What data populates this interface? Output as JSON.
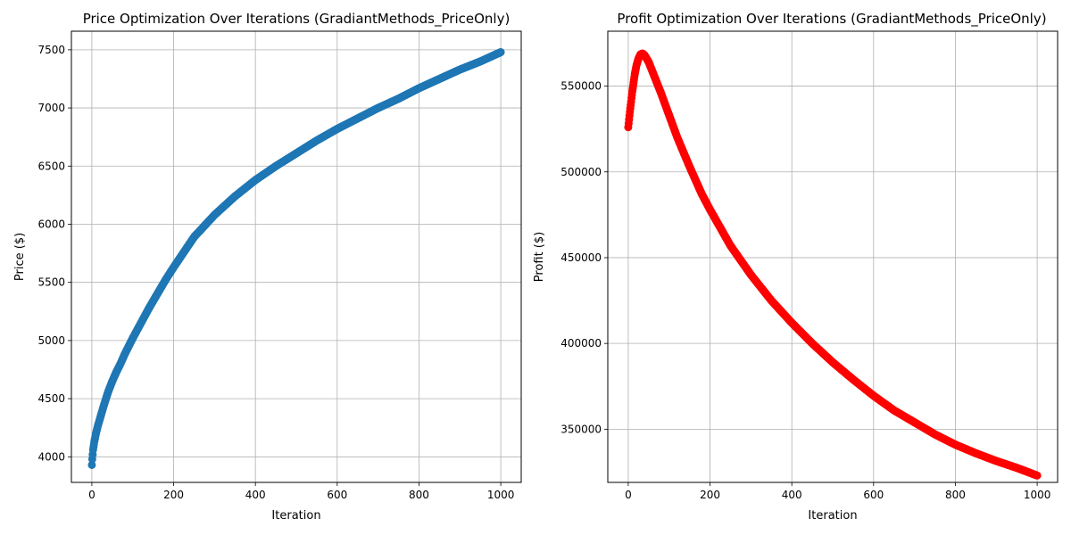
{
  "chart_data": [
    {
      "type": "scatter",
      "title": "Price Optimization Over Iterations (GradiantMethods_PriceOnly)",
      "xlabel": "Iteration",
      "ylabel": "Price ($)",
      "xlim": [
        -50,
        1050
      ],
      "ylim": [
        3780,
        7660
      ],
      "xticks": [
        0,
        200,
        400,
        600,
        800,
        1000
      ],
      "yticks": [
        4000,
        4500,
        5000,
        5500,
        6000,
        6500,
        7000,
        7500
      ],
      "grid": true,
      "color": "#1f77b4",
      "series": [
        {
          "x": [
            0,
            1,
            3,
            6,
            10,
            15,
            20,
            30,
            40,
            50,
            60,
            70,
            80,
            90,
            100,
            120,
            140,
            160,
            180,
            200,
            250,
            300,
            350,
            400,
            450,
            500,
            550,
            600,
            650,
            700,
            750,
            800,
            850,
            900,
            950,
            1000
          ],
          "values": [
            3930,
            3980,
            4060,
            4130,
            4200,
            4270,
            4330,
            4450,
            4560,
            4650,
            4730,
            4800,
            4880,
            4950,
            5020,
            5150,
            5280,
            5400,
            5520,
            5630,
            5890,
            6080,
            6240,
            6380,
            6500,
            6610,
            6720,
            6820,
            6910,
            7000,
            7080,
            7170,
            7250,
            7330,
            7400,
            7480
          ]
        }
      ]
    },
    {
      "type": "scatter",
      "title": "Profit Optimization Over Iterations (GradiantMethods_PriceOnly)",
      "xlabel": "Iteration",
      "ylabel": "Profit ($)",
      "xlim": [
        -50,
        1050
      ],
      "ylim": [
        319000,
        582000
      ],
      "xticks": [
        0,
        200,
        400,
        600,
        800,
        1000
      ],
      "yticks": [
        350000,
        400000,
        450000,
        500000,
        550000
      ],
      "grid": true,
      "color": "#ff0000",
      "series": [
        {
          "x": [
            0,
            2,
            4,
            6,
            8,
            10,
            13,
            16,
            20,
            25,
            30,
            35,
            40,
            50,
            60,
            70,
            80,
            100,
            120,
            150,
            180,
            200,
            250,
            300,
            350,
            400,
            450,
            500,
            550,
            600,
            650,
            700,
            750,
            800,
            850,
            900,
            950,
            1000
          ],
          "values": [
            526000,
            530500,
            535000,
            539000,
            543000,
            547000,
            552000,
            557000,
            562000,
            566000,
            568500,
            569000,
            568000,
            564000,
            558000,
            552000,
            546000,
            533000,
            520000,
            503000,
            487000,
            478000,
            457000,
            440000,
            425000,
            412000,
            400000,
            389000,
            379000,
            369500,
            361000,
            354000,
            347000,
            341000,
            336000,
            331500,
            327500,
            323000
          ]
        }
      ]
    }
  ]
}
